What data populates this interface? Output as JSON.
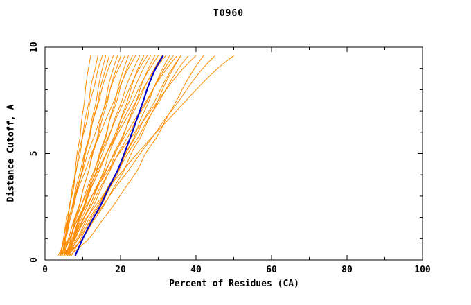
{
  "chart_data": {
    "type": "line",
    "title": "T0960",
    "xlabel": "Percent of Residues (CA)",
    "ylabel": "Distance Cutoff, A",
    "xlim": [
      0,
      100
    ],
    "ylim": [
      0,
      10
    ],
    "x_major_ticks": [
      0,
      20,
      40,
      60,
      80,
      100
    ],
    "x_minor_step": 10,
    "y_major_ticks": [
      0,
      5,
      10
    ],
    "y_minor_step": 1,
    "grid": false,
    "legend": "none",
    "colors": {
      "models": "#FF8C00",
      "highlight": "#0000CD",
      "axis": "#000000",
      "background": "#FFFFFF"
    },
    "y_grid": [
      0.2,
      1.0,
      1.8,
      2.6,
      3.4,
      4.2,
      5.0,
      5.8,
      6.6,
      7.4,
      8.2,
      9.0,
      9.6
    ],
    "models": [
      [
        4.0,
        5.2,
        6.0,
        6.5,
        7.5,
        8.0,
        8.5,
        9.3,
        9.7,
        10.4,
        10.8,
        11.5,
        12.1
      ],
      [
        4.2,
        4.9,
        5.6,
        6.6,
        7.2,
        8.3,
        8.9,
        9.9,
        10.6,
        11.6,
        12.2,
        13.3,
        14.0
      ],
      [
        5.0,
        5.3,
        6.1,
        6.6,
        7.6,
        8.2,
        9.3,
        10.0,
        11.2,
        11.9,
        13.1,
        14.1,
        15.2
      ],
      [
        3.5,
        5.4,
        6.4,
        7.7,
        8.7,
        9.9,
        10.5,
        11.7,
        12.4,
        13.5,
        14.2,
        15.2,
        16.1
      ],
      [
        4.5,
        5.6,
        6.5,
        7.7,
        8.6,
        9.8,
        10.7,
        11.9,
        12.7,
        14.0,
        14.8,
        16.1,
        17.0
      ],
      [
        5.0,
        5.6,
        6.2,
        7.3,
        8.2,
        9.4,
        10.4,
        11.7,
        12.8,
        14.2,
        15.3,
        16.8,
        18.1
      ],
      [
        4.0,
        6.2,
        7.5,
        9.1,
        10.2,
        11.6,
        12.5,
        13.9,
        14.7,
        16.0,
        16.8,
        18.1,
        19.2
      ],
      [
        5.5,
        6.8,
        7.8,
        9.2,
        10.2,
        11.6,
        12.7,
        14.1,
        15.1,
        16.5,
        17.5,
        18.9,
        20.1
      ],
      [
        4.5,
        5.3,
        6.1,
        7.4,
        8.5,
        10.0,
        11.3,
        13.0,
        14.5,
        16.2,
        17.6,
        19.5,
        21.2
      ],
      [
        5.0,
        7.5,
        9.0,
        10.7,
        12.0,
        13.6,
        14.6,
        16.2,
        17.1,
        18.5,
        19.5,
        20.9,
        22.1
      ],
      [
        6.0,
        7.5,
        8.7,
        10.4,
        11.6,
        13.2,
        14.4,
        16.0,
        17.2,
        18.9,
        20.1,
        21.7,
        23.2
      ],
      [
        4.0,
        4.9,
        5.9,
        7.5,
        8.9,
        10.7,
        12.3,
        14.3,
        16.1,
        18.1,
        19.9,
        22.1,
        24.0
      ],
      [
        5.5,
        7.2,
        8.7,
        10.5,
        11.9,
        13.7,
        15.2,
        17.0,
        18.4,
        20.2,
        21.6,
        23.5,
        25.1
      ],
      [
        5.0,
        8.0,
        9.9,
        12.0,
        13.7,
        15.6,
        16.9,
        18.8,
        20.0,
        21.7,
        23.0,
        24.6,
        26.2
      ],
      [
        6.0,
        6.9,
        8.0,
        9.7,
        11.2,
        13.0,
        14.7,
        16.8,
        18.7,
        20.8,
        22.7,
        25.0,
        27.1
      ],
      [
        4.5,
        6.6,
        8.3,
        10.5,
        12.2,
        14.4,
        16.2,
        18.3,
        20.1,
        22.2,
        24.0,
        26.1,
        28.0
      ],
      [
        5.0,
        8.5,
        10.7,
        13.0,
        15.0,
        17.1,
        18.6,
        20.7,
        22.2,
        24.1,
        25.5,
        27.4,
        29.1
      ],
      [
        6.5,
        7.5,
        8.8,
        10.6,
        12.3,
        14.4,
        16.3,
        18.6,
        20.7,
        23.1,
        25.2,
        27.8,
        30.0
      ],
      [
        5.5,
        7.7,
        9.7,
        12.0,
        13.9,
        16.2,
        18.2,
        20.5,
        22.4,
        24.7,
        26.6,
        29.0,
        31.0
      ],
      [
        5.0,
        6.2,
        7.6,
        9.7,
        11.7,
        14.0,
        16.2,
        18.9,
        21.4,
        24.0,
        26.5,
        29.4,
        32.0
      ],
      [
        6.0,
        9.9,
        12.4,
        15.0,
        17.2,
        19.6,
        21.3,
        23.7,
        25.3,
        27.4,
        29.1,
        31.2,
        33.0
      ],
      [
        5.0,
        7.5,
        9.7,
        12.4,
        14.6,
        17.2,
        19.4,
        22.0,
        24.2,
        26.9,
        29.1,
        31.7,
        34.0
      ],
      [
        6.5,
        7.7,
        9.3,
        11.4,
        13.5,
        16.0,
        18.4,
        21.1,
        23.8,
        26.6,
        29.2,
        32.3,
        35.0
      ],
      [
        5.5,
        9.9,
        12.7,
        15.7,
        18.2,
        20.9,
        22.8,
        25.4,
        27.4,
        29.7,
        31.6,
        34.0,
        36.0
      ],
      [
        6.0,
        8.8,
        11.2,
        14.1,
        16.6,
        19.4,
        21.9,
        24.8,
        27.2,
        30.1,
        32.6,
        35.4,
        38.0
      ],
      [
        5.0,
        6.5,
        8.4,
        11.1,
        13.7,
        16.7,
        19.6,
        23.0,
        26.3,
        29.6,
        32.9,
        36.6,
        40.0
      ],
      [
        6.5,
        11.6,
        14.9,
        18.3,
        21.3,
        24.4,
        26.6,
        29.7,
        32.0,
        34.6,
        36.9,
        39.6,
        42.0
      ],
      [
        5.5,
        8.9,
        12.0,
        15.5,
        18.6,
        22.1,
        25.2,
        28.6,
        31.7,
        35.2,
        38.3,
        41.8,
        45.0
      ],
      [
        6.0,
        7.9,
        10.3,
        13.6,
        16.9,
        20.6,
        24.4,
        28.5,
        32.7,
        36.9,
        41.1,
        45.7,
        50.0
      ],
      [
        7.0,
        9.5,
        11.7,
        14.4,
        16.6,
        19.2,
        21.4,
        24.0,
        26.2,
        28.9,
        31.1,
        33.7,
        36.0
      ]
    ],
    "highlight": [
      8.0,
      10.0,
      12.3,
      14.8,
      16.9,
      19.2,
      21.0,
      22.7,
      24.3,
      25.9,
      27.4,
      29.3,
      31.3
    ]
  }
}
